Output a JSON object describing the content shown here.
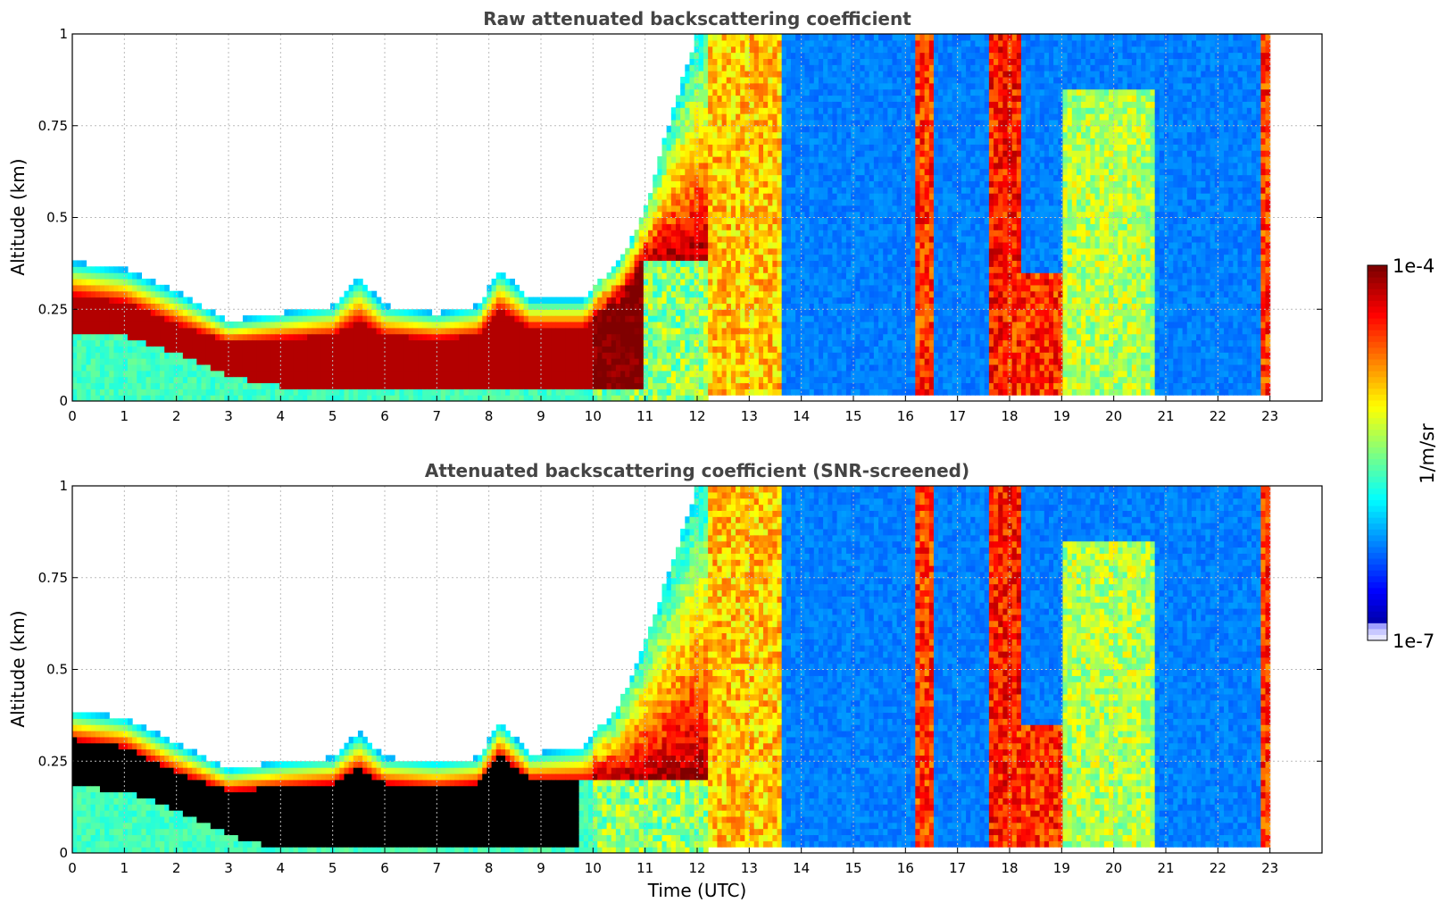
{
  "chart_data": [
    {
      "type": "heatmap",
      "title": "Raw attenuated backscattering coefficient",
      "xlabel": "",
      "ylabel": "Altitude (km)",
      "xlim": [
        0,
        24
      ],
      "ylim": [
        0,
        1
      ],
      "x_ticks": [
        "0",
        "1",
        "2",
        "3",
        "4",
        "5",
        "6",
        "7",
        "8",
        "9",
        "10",
        "11",
        "12",
        "13",
        "14",
        "15",
        "16",
        "17",
        "18",
        "19",
        "20",
        "21",
        "22",
        "23"
      ],
      "y_ticks": [
        "0",
        "0.25",
        "0.5",
        "0.75",
        "1"
      ],
      "grid": true,
      "data_end_time": 23,
      "layer_top_km": [
        {
          "t": 0,
          "v": 0.38
        },
        {
          "t": 1,
          "v": 0.36
        },
        {
          "t": 2,
          "v": 0.3
        },
        {
          "t": 3,
          "v": 0.22
        },
        {
          "t": 4,
          "v": 0.24
        },
        {
          "t": 5,
          "v": 0.26
        },
        {
          "t": 5.5,
          "v": 0.34
        },
        {
          "t": 6,
          "v": 0.26
        },
        {
          "t": 7,
          "v": 0.24
        },
        {
          "t": 7.8,
          "v": 0.26
        },
        {
          "t": 8.2,
          "v": 0.36
        },
        {
          "t": 8.8,
          "v": 0.28
        },
        {
          "t": 9.8,
          "v": 0.28
        },
        {
          "t": 10.5,
          "v": 0.38
        },
        {
          "t": 11,
          "v": 0.52
        },
        {
          "t": 11.5,
          "v": 0.78
        },
        {
          "t": 12,
          "v": 1.0
        }
      ],
      "layer_core_top_km": [
        {
          "t": 0,
          "v": 0.29
        },
        {
          "t": 1,
          "v": 0.27
        },
        {
          "t": 2,
          "v": 0.21
        },
        {
          "t": 3,
          "v": 0.16
        },
        {
          "t": 4,
          "v": 0.17
        },
        {
          "t": 5,
          "v": 0.18
        },
        {
          "t": 5.5,
          "v": 0.22
        },
        {
          "t": 6,
          "v": 0.18
        },
        {
          "t": 7,
          "v": 0.17
        },
        {
          "t": 7.8,
          "v": 0.18
        },
        {
          "t": 8.2,
          "v": 0.25
        },
        {
          "t": 8.8,
          "v": 0.2
        },
        {
          "t": 9.8,
          "v": 0.2
        },
        {
          "t": 10.5,
          "v": 0.27
        },
        {
          "t": 11,
          "v": 0.38
        }
      ],
      "layer_core_bottom_km": [
        {
          "t": 0,
          "v": 0.19
        },
        {
          "t": 1,
          "v": 0.18
        },
        {
          "t": 2,
          "v": 0.13
        },
        {
          "t": 3,
          "v": 0.07
        },
        {
          "t": 4,
          "v": 0.04
        },
        {
          "t": 5,
          "v": 0.04
        },
        {
          "t": 6,
          "v": 0.03
        },
        {
          "t": 7,
          "v": 0.03
        },
        {
          "t": 8,
          "v": 0.03
        },
        {
          "t": 9,
          "v": 0.03
        },
        {
          "t": 10,
          "v": 0.03
        },
        {
          "t": 11,
          "v": 0.03
        }
      ],
      "clouds": [
        {
          "t0": 12.2,
          "t1": 13.6,
          "top_km": 1.0,
          "level": 0.78
        },
        {
          "t0": 16.2,
          "t1": 16.5,
          "top_km": 1.0,
          "level": 0.92
        },
        {
          "t0": 17.6,
          "t1": 18.2,
          "top_km": 1.0,
          "level": 0.95
        },
        {
          "t0": 18.0,
          "t1": 19.5,
          "top_km": 0.35,
          "level": 0.93
        },
        {
          "t0": 19.0,
          "t1": 20.8,
          "top_km": 0.85,
          "level": 0.65
        },
        {
          "t0": 22.8,
          "t1": 23.0,
          "top_km": 1.0,
          "level": 0.92
        }
      ]
    },
    {
      "type": "heatmap",
      "title": "Attenuated backscattering coefficient (SNR-screened)",
      "xlabel": "Time (UTC)",
      "ylabel": "Altitude (km)",
      "xlim": [
        0,
        24
      ],
      "ylim": [
        0,
        1
      ],
      "x_ticks": [
        "0",
        "1",
        "2",
        "3",
        "4",
        "5",
        "6",
        "7",
        "8",
        "9",
        "10",
        "11",
        "12",
        "13",
        "14",
        "15",
        "16",
        "17",
        "18",
        "19",
        "20",
        "21",
        "22",
        "23"
      ],
      "y_ticks": [
        "0",
        "0.25",
        "0.5",
        "0.75",
        "1"
      ],
      "grid": true,
      "data_end_time": 23,
      "saturated_color": "#000000",
      "layer_top_km": [
        {
          "t": 0,
          "v": 0.39
        },
        {
          "t": 1,
          "v": 0.37
        },
        {
          "t": 2,
          "v": 0.3
        },
        {
          "t": 3,
          "v": 0.23
        },
        {
          "t": 4,
          "v": 0.25
        },
        {
          "t": 5,
          "v": 0.26
        },
        {
          "t": 5.5,
          "v": 0.33
        },
        {
          "t": 6,
          "v": 0.26
        },
        {
          "t": 7,
          "v": 0.25
        },
        {
          "t": 7.8,
          "v": 0.26
        },
        {
          "t": 8.2,
          "v": 0.36
        },
        {
          "t": 8.8,
          "v": 0.27
        },
        {
          "t": 9.8,
          "v": 0.29
        },
        {
          "t": 10.5,
          "v": 0.4
        },
        {
          "t": 11,
          "v": 0.58
        },
        {
          "t": 11.5,
          "v": 0.78
        },
        {
          "t": 12,
          "v": 1.0
        }
      ],
      "layer_core_top_km": [
        {
          "t": 0,
          "v": 0.31
        },
        {
          "t": 1,
          "v": 0.29
        },
        {
          "t": 2,
          "v": 0.22
        },
        {
          "t": 3,
          "v": 0.17
        },
        {
          "t": 4,
          "v": 0.18
        },
        {
          "t": 5,
          "v": 0.19
        },
        {
          "t": 5.5,
          "v": 0.23
        },
        {
          "t": 6,
          "v": 0.19
        },
        {
          "t": 7,
          "v": 0.18
        },
        {
          "t": 7.8,
          "v": 0.19
        },
        {
          "t": 8.2,
          "v": 0.27
        },
        {
          "t": 8.8,
          "v": 0.2
        },
        {
          "t": 9.75,
          "v": 0.2
        }
      ],
      "layer_core_bottom_km": [
        {
          "t": 0,
          "v": 0.18
        },
        {
          "t": 1,
          "v": 0.17
        },
        {
          "t": 2,
          "v": 0.12
        },
        {
          "t": 3,
          "v": 0.05
        },
        {
          "t": 4,
          "v": 0.01
        },
        {
          "t": 9.75,
          "v": 0.01
        }
      ],
      "clouds": [
        {
          "t0": 12.2,
          "t1": 13.6,
          "top_km": 1.0,
          "level": 0.78
        },
        {
          "t0": 16.2,
          "t1": 16.5,
          "top_km": 1.0,
          "level": 0.92
        },
        {
          "t0": 17.6,
          "t1": 18.2,
          "top_km": 1.0,
          "level": 0.95
        },
        {
          "t0": 18.0,
          "t1": 19.5,
          "top_km": 0.35,
          "level": 0.93
        },
        {
          "t0": 19.0,
          "t1": 20.8,
          "top_km": 0.85,
          "level": 0.65
        },
        {
          "t0": 22.8,
          "t1": 23.0,
          "top_km": 1.0,
          "level": 0.92
        }
      ]
    }
  ],
  "colorbar": {
    "label": "1/m/sr",
    "max_label": "1e-4",
    "min_label": "1e-7",
    "scale": "log",
    "range": [
      1e-07,
      0.0001
    ],
    "colormap": "jet"
  }
}
